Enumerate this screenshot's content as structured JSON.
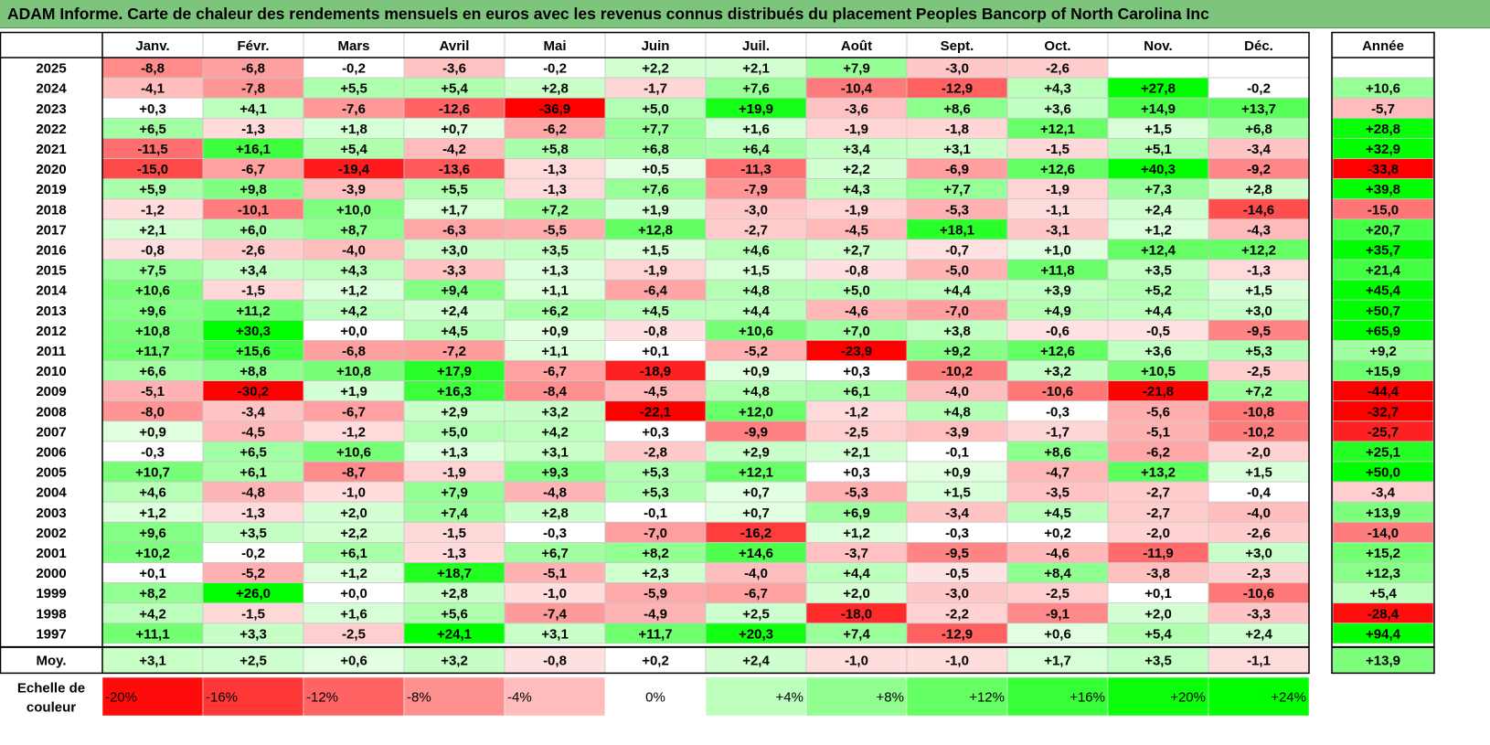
{
  "title": "ADAM Informe. Carte de chaleur des rendements mensuels en euros avec les revenus connus distribués du placement Peoples Bancorp of North Carolina Inc",
  "colors": {
    "title_bg": "#7dc47d",
    "positive_max": "#00ff00",
    "negative_max": "#ff0000",
    "neutral": "#ffffff"
  },
  "chart_data": {
    "type": "heatmap",
    "columns": [
      "Janv.",
      "Févr.",
      "Mars",
      "Avril",
      "Mai",
      "Juin",
      "Juil.",
      "Août",
      "Sept.",
      "Oct.",
      "Nov.",
      "Déc."
    ],
    "year_column_label": "Année",
    "rows": [
      {
        "year": "2025",
        "months": [
          "-8,8",
          "-6,8",
          "-0,2",
          "-3,6",
          "-0,2",
          "+2,2",
          "+2,1",
          "+7,9",
          "-3,0",
          "-2,6",
          "",
          ""
        ],
        "annual": ""
      },
      {
        "year": "2024",
        "months": [
          "-4,1",
          "-7,8",
          "+5,5",
          "+5,4",
          "+2,8",
          "-1,7",
          "+7,6",
          "-10,4",
          "-12,9",
          "+4,3",
          "+27,8",
          "-0,2"
        ],
        "annual": "+10,6"
      },
      {
        "year": "2023",
        "months": [
          "+0,3",
          "+4,1",
          "-7,6",
          "-12,6",
          "-36,9",
          "+5,0",
          "+19,9",
          "-3,6",
          "+8,6",
          "+3,6",
          "+14,9",
          "+13,7"
        ],
        "annual": "-5,7"
      },
      {
        "year": "2022",
        "months": [
          "+6,5",
          "-1,3",
          "+1,8",
          "+0,7",
          "-6,2",
          "+7,7",
          "+1,6",
          "-1,9",
          "-1,8",
          "+12,1",
          "+1,5",
          "+6,8"
        ],
        "annual": "+28,8"
      },
      {
        "year": "2021",
        "months": [
          "-11,5",
          "+16,1",
          "+5,4",
          "-4,2",
          "+5,8",
          "+6,8",
          "+6,4",
          "+3,4",
          "+3,1",
          "-1,5",
          "+5,1",
          "-3,4"
        ],
        "annual": "+32,9"
      },
      {
        "year": "2020",
        "months": [
          "-15,0",
          "-6,7",
          "-19,4",
          "-13,6",
          "-1,3",
          "+0,5",
          "-11,3",
          "+2,2",
          "-6,9",
          "+12,6",
          "+40,3",
          "-9,2"
        ],
        "annual": "-33,8"
      },
      {
        "year": "2019",
        "months": [
          "+5,9",
          "+9,8",
          "-3,9",
          "+5,5",
          "-1,3",
          "+7,6",
          "-7,9",
          "+4,3",
          "+7,7",
          "-1,9",
          "+7,3",
          "+2,8"
        ],
        "annual": "+39,8"
      },
      {
        "year": "2018",
        "months": [
          "-1,2",
          "-10,1",
          "+10,0",
          "+1,7",
          "+7,2",
          "+1,9",
          "-3,0",
          "-1,9",
          "-5,3",
          "-1,1",
          "+2,4",
          "-14,6"
        ],
        "annual": "-15,0"
      },
      {
        "year": "2017",
        "months": [
          "+2,1",
          "+6,0",
          "+8,7",
          "-6,3",
          "-5,5",
          "+12,8",
          "-2,7",
          "-4,5",
          "+18,1",
          "-3,1",
          "+1,2",
          "-4,3"
        ],
        "annual": "+20,7"
      },
      {
        "year": "2016",
        "months": [
          "-0,8",
          "-2,6",
          "-4,0",
          "+3,0",
          "+3,5",
          "+1,5",
          "+4,6",
          "+2,7",
          "-0,7",
          "+1,0",
          "+12,4",
          "+12,2"
        ],
        "annual": "+35,7"
      },
      {
        "year": "2015",
        "months": [
          "+7,5",
          "+3,4",
          "+4,3",
          "-3,3",
          "+1,3",
          "-1,9",
          "+1,5",
          "-0,8",
          "-5,0",
          "+11,8",
          "+3,5",
          "-1,3"
        ],
        "annual": "+21,4"
      },
      {
        "year": "2014",
        "months": [
          "+10,6",
          "-1,5",
          "+1,2",
          "+9,4",
          "+1,1",
          "-6,4",
          "+4,8",
          "+5,0",
          "+4,4",
          "+3,9",
          "+5,2",
          "+1,5"
        ],
        "annual": "+45,4"
      },
      {
        "year": "2013",
        "months": [
          "+9,6",
          "+11,2",
          "+4,2",
          "+2,4",
          "+6,2",
          "+4,5",
          "+4,4",
          "-4,6",
          "-7,0",
          "+4,9",
          "+4,4",
          "+3,0"
        ],
        "annual": "+50,7"
      },
      {
        "year": "2012",
        "months": [
          "+10,8",
          "+30,3",
          "+0,0",
          "+4,5",
          "+0,9",
          "-0,8",
          "+10,6",
          "+7,0",
          "+3,8",
          "-0,6",
          "-0,5",
          "-9,5"
        ],
        "annual": "+65,9"
      },
      {
        "year": "2011",
        "months": [
          "+11,7",
          "+15,6",
          "-6,8",
          "-7,2",
          "+1,1",
          "+0,1",
          "-5,2",
          "-23,9",
          "+9,2",
          "+12,6",
          "+3,6",
          "+5,3"
        ],
        "annual": "+9,2"
      },
      {
        "year": "2010",
        "months": [
          "+6,6",
          "+8,8",
          "+10,8",
          "+17,9",
          "-6,7",
          "-18,9",
          "+0,9",
          "+0,3",
          "-10,2",
          "+3,2",
          "+10,5",
          "-2,5"
        ],
        "annual": "+15,9"
      },
      {
        "year": "2009",
        "months": [
          "-5,1",
          "-30,2",
          "+1,9",
          "+16,3",
          "-8,4",
          "-4,5",
          "+4,8",
          "+6,1",
          "-4,0",
          "-10,6",
          "-21,8",
          "+7,2"
        ],
        "annual": "-44,4"
      },
      {
        "year": "2008",
        "months": [
          "-8,0",
          "-3,4",
          "-6,7",
          "+2,9",
          "+3,2",
          "-22,1",
          "+12,0",
          "-1,2",
          "+4,8",
          "-0,3",
          "-5,6",
          "-10,8"
        ],
        "annual": "-32,7"
      },
      {
        "year": "2007",
        "months": [
          "+0,9",
          "-4,5",
          "-1,2",
          "+5,0",
          "+4,2",
          "+0,3",
          "-9,9",
          "-2,5",
          "-3,9",
          "-1,7",
          "-5,1",
          "-10,2"
        ],
        "annual": "-25,7"
      },
      {
        "year": "2006",
        "months": [
          "-0,3",
          "+6,5",
          "+10,6",
          "+1,3",
          "+3,1",
          "-2,8",
          "+2,9",
          "+2,1",
          "-0,1",
          "+8,6",
          "-6,2",
          "-2,0"
        ],
        "annual": "+25,1"
      },
      {
        "year": "2005",
        "months": [
          "+10,7",
          "+6,1",
          "-8,7",
          "-1,9",
          "+9,3",
          "+5,3",
          "+12,1",
          "+0,3",
          "+0,9",
          "-4,7",
          "+13,2",
          "+1,5"
        ],
        "annual": "+50,0"
      },
      {
        "year": "2004",
        "months": [
          "+4,6",
          "-4,8",
          "-1,0",
          "+7,9",
          "-4,8",
          "+5,3",
          "+0,7",
          "-5,3",
          "+1,5",
          "-3,5",
          "-2,7",
          "-0,4"
        ],
        "annual": "-3,4"
      },
      {
        "year": "2003",
        "months": [
          "+1,2",
          "-1,3",
          "+2,0",
          "+7,4",
          "+2,8",
          "-0,1",
          "+0,7",
          "+6,9",
          "-3,4",
          "+4,5",
          "-2,7",
          "-4,0"
        ],
        "annual": "+13,9"
      },
      {
        "year": "2002",
        "months": [
          "+9,6",
          "+3,5",
          "+2,2",
          "-1,5",
          "-0,3",
          "-7,0",
          "-16,2",
          "+1,2",
          "-0,3",
          "+0,2",
          "-2,0",
          "-2,6"
        ],
        "annual": "-14,0"
      },
      {
        "year": "2001",
        "months": [
          "+10,2",
          "-0,2",
          "+6,1",
          "-1,3",
          "+6,7",
          "+8,2",
          "+14,6",
          "-3,7",
          "-9,5",
          "-4,6",
          "-11,9",
          "+3,0"
        ],
        "annual": "+15,2"
      },
      {
        "year": "2000",
        "months": [
          "+0,1",
          "-5,2",
          "+1,2",
          "+18,7",
          "-5,1",
          "+2,3",
          "-4,0",
          "+4,4",
          "-0,5",
          "+8,4",
          "-3,8",
          "-2,3"
        ],
        "annual": "+12,3"
      },
      {
        "year": "1999",
        "months": [
          "+8,2",
          "+26,0",
          "+0,0",
          "+2,8",
          "-1,0",
          "-5,9",
          "-6,7",
          "+2,0",
          "-3,0",
          "-2,5",
          "+0,1",
          "-10,6"
        ],
        "annual": "+5,4"
      },
      {
        "year": "1998",
        "months": [
          "+4,2",
          "-1,5",
          "+1,6",
          "+5,6",
          "-7,4",
          "-4,9",
          "+2,5",
          "-18,0",
          "-2,2",
          "-9,1",
          "+2,0",
          "-3,3"
        ],
        "annual": "-28,4"
      },
      {
        "year": "1997",
        "months": [
          "+11,1",
          "+3,3",
          "-2,5",
          "+24,1",
          "+3,1",
          "+11,7",
          "+20,3",
          "+7,4",
          "-12,9",
          "+0,6",
          "+5,4",
          "+2,4"
        ],
        "annual": "+94,4"
      }
    ],
    "average": {
      "label": "Moy.",
      "months": [
        "+3,1",
        "+2,5",
        "+0,6",
        "+3,2",
        "-0,8",
        "+0,2",
        "+2,4",
        "-1,0",
        "-1,0",
        "+1,7",
        "+3,5",
        "-1,1"
      ],
      "annual": "+13,9"
    },
    "scale": {
      "label": "Echelle de couleur",
      "steps": [
        "-20%",
        "-16%",
        "-12%",
        "-8%",
        "-4%",
        "0%",
        "+4%",
        "+8%",
        "+12%",
        "+16%",
        "+20%",
        "+24%"
      ]
    }
  }
}
